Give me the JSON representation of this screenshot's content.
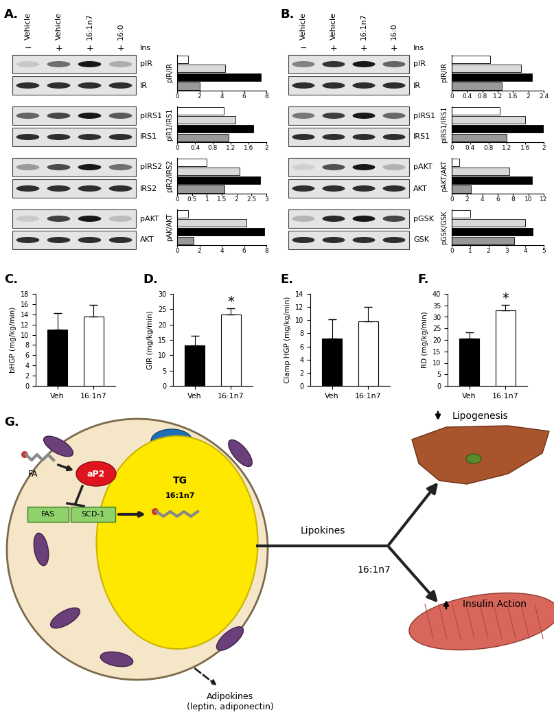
{
  "panels": {
    "labels": [
      "A.",
      "B.",
      "C.",
      "D.",
      "E.",
      "F.",
      "G."
    ]
  },
  "blots": [
    {
      "lanes": [
        "Vehicle",
        "Vehicle",
        "16:1n7",
        "16:0"
      ],
      "ins_label": "Ins",
      "ins": [
        "−",
        "+",
        "+",
        "+"
      ],
      "rows": [
        [
          "pIR",
          "IR"
        ],
        [
          "pIRS1",
          "IRS1"
        ],
        [
          "pIRS2",
          "IRS2"
        ],
        [
          "pAKT",
          "AKT"
        ]
      ]
    },
    {
      "lanes": [
        "Vehicle",
        "Vehicle",
        "16:1n7",
        "16:0"
      ],
      "ins_label": "Ins",
      "ins": [
        "−",
        "+",
        "+",
        "+"
      ],
      "rows": [
        [
          "pIR",
          "IR"
        ],
        [
          "pIRS1",
          "IRS1"
        ],
        [
          "pAKT",
          "AKT"
        ],
        [
          "pGSK",
          "GSK"
        ]
      ]
    }
  ],
  "chart_data": [
    {
      "type": "bar",
      "orientation": "horizontal",
      "y_label": "pIR/IR",
      "categories": [
        null,
        null,
        null,
        null
      ],
      "values": [
        1,
        4.3,
        7.5,
        2
      ],
      "colors": [
        "#ffffff",
        "#d9d9d9",
        "#000000",
        "#999999"
      ],
      "xlim": [
        0,
        8
      ],
      "xticks": [
        0,
        2,
        4,
        6,
        8
      ],
      "tick_labels": "x"
    },
    {
      "type": "bar",
      "orientation": "horizontal",
      "y_label": "pIR1/IRS1",
      "categories": [
        null,
        null,
        null,
        null
      ],
      "values": [
        1.05,
        1.3,
        1.7,
        1.15
      ],
      "colors": [
        "#ffffff",
        "#d9d9d9",
        "#000000",
        "#999999"
      ],
      "xlim": [
        0,
        2
      ],
      "xticks": [
        0,
        0.4,
        0.8,
        1.2,
        1.6,
        2
      ],
      "tick_labels": "x"
    },
    {
      "type": "bar",
      "orientation": "horizontal",
      "y_label": "pIR2/IRS2",
      "categories": [
        null,
        null,
        null,
        null
      ],
      "values": [
        1,
        2.1,
        2.8,
        1.6
      ],
      "colors": [
        "#ffffff",
        "#d9d9d9",
        "#000000",
        "#999999"
      ],
      "xlim": [
        0,
        3
      ],
      "xticks": [
        0,
        0.5,
        1,
        1.5,
        2,
        2.5,
        3
      ],
      "tick_labels": "x"
    },
    {
      "type": "bar",
      "orientation": "horizontal",
      "y_label": "pAK/AKT",
      "categories": [
        null,
        null,
        null,
        null
      ],
      "values": [
        1,
        6.2,
        7.8,
        1.5
      ],
      "colors": [
        "#ffffff",
        "#d9d9d9",
        "#000000",
        "#999999"
      ],
      "xlim": [
        0,
        8
      ],
      "xticks": [
        0,
        2,
        4,
        6,
        8
      ],
      "tick_labels": "x"
    },
    {
      "type": "bar",
      "orientation": "horizontal",
      "y_label": "pIR/IR",
      "categories": [
        null,
        null,
        null,
        null
      ],
      "values": [
        1,
        1.8,
        2.1,
        1.3
      ],
      "colors": [
        "#ffffff",
        "#d9d9d9",
        "#000000",
        "#999999"
      ],
      "xlim": [
        0,
        2.4
      ],
      "xticks": [
        0,
        0.4,
        0.8,
        1.2,
        1.6,
        2,
        2.4
      ],
      "tick_labels": "x"
    },
    {
      "type": "bar",
      "orientation": "horizontal",
      "y_label": "pIRS1/IRS1",
      "categories": [
        null,
        null,
        null,
        null
      ],
      "values": [
        1.05,
        1.6,
        2.0,
        1.2
      ],
      "colors": [
        "#ffffff",
        "#d9d9d9",
        "#000000",
        "#999999"
      ],
      "xlim": [
        0,
        2
      ],
      "xticks": [
        0,
        0.4,
        0.8,
        1.2,
        1.6,
        2
      ],
      "tick_labels": "x"
    },
    {
      "type": "bar",
      "orientation": "horizontal",
      "y_label": "pAKT/AKT",
      "categories": [
        null,
        null,
        null,
        null
      ],
      "values": [
        1,
        7.5,
        10.5,
        2.5
      ],
      "colors": [
        "#ffffff",
        "#d9d9d9",
        "#000000",
        "#999999"
      ],
      "xlim": [
        0,
        12
      ],
      "xticks": [
        0,
        2,
        4,
        6,
        8,
        10,
        12
      ],
      "tick_labels": "x"
    },
    {
      "type": "bar",
      "orientation": "horizontal",
      "y_label": "pGSK/GSK",
      "categories": [
        null,
        null,
        null,
        null
      ],
      "values": [
        1,
        4,
        4.4,
        3.4
      ],
      "colors": [
        "#ffffff",
        "#d9d9d9",
        "#000000",
        "#999999"
      ],
      "xlim": [
        0,
        5
      ],
      "xticks": [
        0,
        1,
        2,
        3,
        4,
        5
      ],
      "tick_labels": "x"
    },
    {
      "type": "bar",
      "y_label": "bHGP (mg/kg/min)",
      "categories": [
        "Veh",
        "16:1n7"
      ],
      "values": [
        11,
        13.6
      ],
      "errors": [
        3.2,
        2.2
      ],
      "colors": [
        "#000000",
        "#ffffff"
      ],
      "ylim": [
        0,
        18
      ],
      "yticks": [
        0,
        2,
        4,
        6,
        8,
        10,
        12,
        14,
        16,
        18
      ],
      "annotations": []
    },
    {
      "type": "bar",
      "y_label": "GIR (mg/kg/min)",
      "categories": [
        "Veh",
        "16:1n7"
      ],
      "values": [
        13.3,
        23.2
      ],
      "errors": [
        3,
        2
      ],
      "colors": [
        "#000000",
        "#ffffff"
      ],
      "ylim": [
        0,
        30
      ],
      "yticks": [
        0,
        5,
        10,
        15,
        20,
        25,
        30
      ],
      "annotations": [
        {
          "text": "*",
          "category": "16:1n7"
        }
      ]
    },
    {
      "type": "bar",
      "y_label": "Clamp HGP (mg/kg/min)",
      "categories": [
        "Veh",
        "16:1n7"
      ],
      "values": [
        7.2,
        9.8
      ],
      "errors": [
        2.9,
        2.2
      ],
      "colors": [
        "#000000",
        "#ffffff"
      ],
      "ylim": [
        0,
        14
      ],
      "yticks": [
        0,
        2,
        4,
        6,
        8,
        10,
        12,
        14
      ],
      "annotations": []
    },
    {
      "type": "bar",
      "y_label": "RD (mg/kg/min)",
      "categories": [
        "Veh",
        "16:1n7"
      ],
      "values": [
        20.5,
        32.8
      ],
      "errors": [
        2.8,
        2.5
      ],
      "colors": [
        "#000000",
        "#ffffff"
      ],
      "ylim": [
        0,
        40
      ],
      "yticks": [
        0,
        5,
        10,
        15,
        20,
        25,
        30,
        35,
        40
      ],
      "annotations": [
        {
          "text": "*",
          "category": "16:1n7"
        }
      ]
    }
  ],
  "diagram": {
    "fa": "FA",
    "protein": "aP2",
    "enzymes": [
      "FAS",
      "SCD-1"
    ],
    "droplet": [
      "TG",
      "16:1n7"
    ],
    "signal": "Lipokines",
    "signal_lipid": "16:1n7",
    "targets": [
      {
        "effect": "Lipogenesis",
        "direction": "down"
      },
      {
        "effect": "Insulin Action",
        "direction": "up"
      }
    ],
    "secreted": "Adipokines\n(leptin, adiponectin)"
  }
}
